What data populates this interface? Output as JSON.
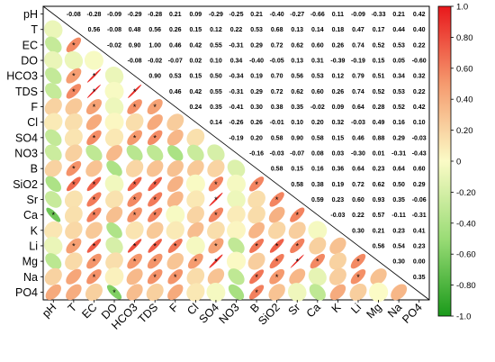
{
  "chart_data": {
    "type": "heatmap",
    "variables": [
      "pH",
      "T",
      "EC",
      "DO",
      "HCO3",
      "TDS",
      "F",
      "Cl",
      "SO4",
      "NO3",
      "B",
      "SiO2",
      "Sr",
      "Ca",
      "K",
      "Li",
      "Mg",
      "Na",
      "PO4"
    ],
    "matrix": [
      [
        1.0,
        -0.08,
        -0.28,
        -0.09,
        -0.29,
        -0.28,
        0.21,
        0.09,
        -0.29,
        -0.25,
        0.21,
        -0.4,
        -0.27,
        -0.66,
        0.11,
        -0.09,
        -0.33,
        0.21,
        0.42
      ],
      [
        -0.08,
        1.0,
        0.56,
        -0.08,
        0.48,
        0.56,
        0.26,
        0.15,
        0.12,
        0.22,
        0.53,
        0.68,
        0.13,
        0.14,
        0.18,
        0.47,
        0.17,
        0.44,
        0.4
      ],
      [
        -0.28,
        0.56,
        1.0,
        -0.02,
        0.9,
        1.0,
        0.46,
        0.42,
        0.55,
        -0.31,
        0.29,
        0.72,
        0.62,
        0.6,
        0.26,
        0.74,
        0.52,
        0.53,
        0.22
      ],
      [
        -0.09,
        -0.08,
        -0.02,
        1.0,
        -0.08,
        -0.02,
        -0.07,
        0.02,
        0.1,
        0.34,
        -0.4,
        -0.05,
        0.13,
        0.31,
        -0.39,
        -0.19,
        0.15,
        0.05,
        -0.6
      ],
      [
        -0.29,
        0.48,
        0.9,
        -0.08,
        1.0,
        0.9,
        0.53,
        0.15,
        0.5,
        -0.34,
        0.19,
        0.7,
        0.56,
        0.53,
        0.12,
        0.79,
        0.51,
        0.34,
        0.32
      ],
      [
        -0.28,
        0.56,
        1.0,
        -0.02,
        0.9,
        1.0,
        0.46,
        0.42,
        0.55,
        -0.31,
        0.29,
        0.72,
        0.62,
        0.6,
        0.26,
        0.74,
        0.52,
        0.53,
        0.22
      ],
      [
        0.21,
        0.26,
        0.46,
        -0.07,
        0.53,
        0.46,
        1.0,
        0.24,
        0.35,
        -0.41,
        0.3,
        0.38,
        0.35,
        -0.02,
        0.09,
        0.64,
        0.28,
        0.52,
        0.42
      ],
      [
        0.09,
        0.15,
        0.42,
        0.02,
        0.15,
        0.42,
        0.24,
        1.0,
        0.14,
        -0.26,
        0.26,
        -0.01,
        0.1,
        0.2,
        0.32,
        -0.03,
        0.49,
        0.16,
        0.1
      ],
      [
        -0.29,
        0.12,
        0.55,
        0.1,
        0.5,
        0.55,
        0.35,
        0.14,
        1.0,
        -0.19,
        0.2,
        0.58,
        0.9,
        0.58,
        0.15,
        0.46,
        0.88,
        0.29,
        -0.03
      ],
      [
        -0.25,
        0.22,
        -0.31,
        0.34,
        -0.34,
        -0.31,
        -0.41,
        -0.26,
        -0.19,
        1.0,
        -0.16,
        -0.03,
        -0.07,
        0.08,
        0.03,
        -0.3,
        0.01,
        -0.31,
        -0.43
      ],
      [
        0.21,
        0.53,
        0.29,
        -0.4,
        0.19,
        0.29,
        0.3,
        0.26,
        0.2,
        -0.16,
        1.0,
        0.58,
        0.15,
        0.16,
        0.36,
        0.64,
        0.23,
        0.64,
        0.6
      ],
      [
        -0.4,
        0.68,
        0.72,
        -0.05,
        0.7,
        0.72,
        0.38,
        -0.01,
        0.58,
        -0.03,
        0.58,
        1.0,
        0.58,
        0.38,
        0.19,
        0.72,
        0.62,
        0.5,
        0.29
      ],
      [
        -0.27,
        0.13,
        0.62,
        0.13,
        0.56,
        0.62,
        0.35,
        0.1,
        0.9,
        -0.07,
        0.15,
        0.58,
        1.0,
        0.59,
        0.23,
        0.6,
        0.93,
        0.35,
        -0.06
      ],
      [
        -0.66,
        0.14,
        0.6,
        0.31,
        0.53,
        0.6,
        -0.02,
        0.2,
        0.58,
        0.08,
        0.16,
        0.38,
        0.59,
        1.0,
        -0.03,
        0.22,
        0.57,
        -0.11,
        -0.31
      ],
      [
        0.11,
        0.18,
        0.26,
        -0.39,
        0.12,
        0.26,
        0.09,
        0.32,
        0.15,
        0.03,
        0.36,
        0.19,
        0.23,
        -0.03,
        1.0,
        0.3,
        0.21,
        0.23,
        0.41
      ],
      [
        -0.09,
        0.47,
        0.74,
        -0.19,
        0.79,
        0.74,
        0.64,
        -0.03,
        0.46,
        -0.3,
        0.64,
        0.72,
        0.6,
        0.22,
        0.3,
        1.0,
        0.56,
        0.54,
        0.23
      ],
      [
        -0.33,
        0.17,
        0.52,
        0.15,
        0.51,
        0.52,
        0.28,
        0.49,
        0.88,
        0.01,
        0.23,
        0.62,
        0.93,
        0.57,
        0.21,
        0.56,
        1.0,
        0.3,
        0.0
      ],
      [
        0.21,
        0.44,
        0.53,
        0.05,
        0.34,
        0.53,
        0.52,
        0.16,
        0.29,
        -0.31,
        0.64,
        0.5,
        0.35,
        -0.11,
        0.23,
        0.54,
        0.3,
        1.0,
        0.35
      ],
      [
        0.42,
        0.4,
        0.22,
        -0.6,
        0.32,
        0.22,
        0.42,
        0.1,
        -0.03,
        -0.43,
        0.6,
        0.29,
        -0.06,
        -0.31,
        0.41,
        0.23,
        0.0,
        0.35,
        1.0
      ]
    ],
    "number_format": "2 decimals",
    "upper_triangle": "numbers",
    "lower_triangle": "ellipses",
    "significance_marker": "*",
    "significance_cutoff_abs_r": 0.45,
    "colorbar": {
      "min": -1.0,
      "max": 1.0,
      "ticks": [
        "1.0",
        "0.80",
        "0.60",
        "0.40",
        "0.20",
        "0",
        "-0.20",
        "-0.40",
        "-0.60",
        "-0.80",
        "-1.0"
      ],
      "stops": [
        {
          "value": -1.0,
          "color": "#1a9a1a"
        },
        {
          "value": -0.5,
          "color": "#9adc76"
        },
        {
          "value": 0.0,
          "color": "#fbfbc6"
        },
        {
          "value": 0.5,
          "color": "#f59a6e"
        },
        {
          "value": 1.0,
          "color": "#e8181c"
        }
      ]
    }
  }
}
